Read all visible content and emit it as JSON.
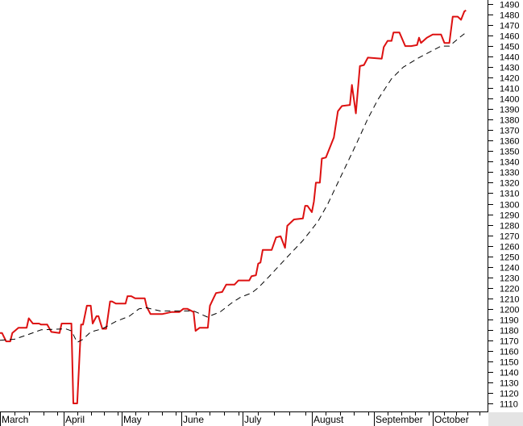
{
  "chart_data": {
    "type": "line",
    "title": "",
    "xlabel": "",
    "ylabel": "",
    "ylim": [
      1110,
      1490
    ],
    "y_ticks": [
      1110,
      1120,
      1130,
      1140,
      1150,
      1160,
      1170,
      1180,
      1190,
      1200,
      1210,
      1220,
      1230,
      1240,
      1250,
      1260,
      1270,
      1280,
      1290,
      1300,
      1310,
      1320,
      1330,
      1340,
      1350,
      1360,
      1370,
      1380,
      1390,
      1400,
      1410,
      1420,
      1430,
      1440,
      1450,
      1460,
      1470,
      1480,
      1490
    ],
    "y_axis_side": "right",
    "x_months": [
      "March",
      "April",
      "May",
      "June",
      "July",
      "August",
      "September",
      "October"
    ],
    "grid": false,
    "legend": "none",
    "series": [
      {
        "style": "solid",
        "color": "#dd1111",
        "points": [
          [
            "03-01",
            1177
          ],
          [
            "03-02",
            1177
          ],
          [
            "03-04",
            1169
          ],
          [
            "03-06",
            1169
          ],
          [
            "03-07",
            1177
          ],
          [
            "03-10",
            1182
          ],
          [
            "03-14",
            1182
          ],
          [
            "03-15",
            1191
          ],
          [
            "03-17",
            1186
          ],
          [
            "03-20",
            1186
          ],
          [
            "03-21",
            1185
          ],
          [
            "03-24",
            1185
          ],
          [
            "03-26",
            1178
          ],
          [
            "03-30",
            1177
          ],
          [
            "03-31",
            1186
          ],
          [
            "04-05",
            1186
          ],
          [
            "04-06",
            1110
          ],
          [
            "04-08",
            1110
          ],
          [
            "04-10",
            1185
          ],
          [
            "04-11",
            1185
          ],
          [
            "04-13",
            1203
          ],
          [
            "04-15",
            1203
          ],
          [
            "04-16",
            1186
          ],
          [
            "04-18",
            1193
          ],
          [
            "04-19",
            1193
          ],
          [
            "04-21",
            1181
          ],
          [
            "04-23",
            1181
          ],
          [
            "04-25",
            1207
          ],
          [
            "04-26",
            1207
          ],
          [
            "04-28",
            1205
          ],
          [
            "05-03",
            1205
          ],
          [
            "05-04",
            1212
          ],
          [
            "05-06",
            1212
          ],
          [
            "05-08",
            1210
          ],
          [
            "05-13",
            1210
          ],
          [
            "05-14",
            1202
          ],
          [
            "05-16",
            1195
          ],
          [
            "05-22",
            1195
          ],
          [
            "05-27",
            1197
          ],
          [
            "05-31",
            1197
          ],
          [
            "06-02",
            1200
          ],
          [
            "06-04",
            1200
          ],
          [
            "06-07",
            1197
          ],
          [
            "06-08",
            1179
          ],
          [
            "06-10",
            1182
          ],
          [
            "06-14",
            1182
          ],
          [
            "06-15",
            1203
          ],
          [
            "06-17",
            1211
          ],
          [
            "06-18",
            1215
          ],
          [
            "06-21",
            1216
          ],
          [
            "06-23",
            1223
          ],
          [
            "06-27",
            1223
          ],
          [
            "06-29",
            1227
          ],
          [
            "07-04",
            1227
          ],
          [
            "07-05",
            1231
          ],
          [
            "07-07",
            1232
          ],
          [
            "07-08",
            1243
          ],
          [
            "07-09",
            1244
          ],
          [
            "07-10",
            1256
          ],
          [
            "07-14",
            1256
          ],
          [
            "07-16",
            1268
          ],
          [
            "07-18",
            1269
          ],
          [
            "07-20",
            1258
          ],
          [
            "07-21",
            1279
          ],
          [
            "07-24",
            1285
          ],
          [
            "07-28",
            1286
          ],
          [
            "07-29",
            1298
          ],
          [
            "07-30",
            1298
          ],
          [
            "08-01",
            1292
          ],
          [
            "08-02",
            1302
          ],
          [
            "08-03",
            1320
          ],
          [
            "08-05",
            1320
          ],
          [
            "08-06",
            1343
          ],
          [
            "08-08",
            1344
          ],
          [
            "08-12",
            1363
          ],
          [
            "08-14",
            1388
          ],
          [
            "08-16",
            1393
          ],
          [
            "08-20",
            1394
          ],
          [
            "08-21",
            1413
          ],
          [
            "08-23",
            1386
          ],
          [
            "08-25",
            1431
          ],
          [
            "08-27",
            1432
          ],
          [
            "08-29",
            1439
          ],
          [
            "09-05",
            1438
          ],
          [
            "09-06",
            1449
          ],
          [
            "09-08",
            1455
          ],
          [
            "09-10",
            1455
          ],
          [
            "09-11",
            1463
          ],
          [
            "09-14",
            1463
          ],
          [
            "09-17",
            1450
          ],
          [
            "09-20",
            1450
          ],
          [
            "09-23",
            1451
          ],
          [
            "09-24",
            1458
          ],
          [
            "09-25",
            1453
          ],
          [
            "09-28",
            1458
          ],
          [
            "10-01",
            1461
          ],
          [
            "10-06",
            1461
          ],
          [
            "10-08",
            1453
          ],
          [
            "10-11",
            1453
          ],
          [
            "10-13",
            1478
          ],
          [
            "10-16",
            1478
          ],
          [
            "10-18",
            1475
          ],
          [
            "10-20",
            1483
          ],
          [
            "10-21",
            1484
          ]
        ]
      },
      {
        "style": "dashed",
        "color": "#000000",
        "points": [
          [
            "03-01",
            1170
          ],
          [
            "03-08",
            1171
          ],
          [
            "03-14",
            1175
          ],
          [
            "03-21",
            1180
          ],
          [
            "04-02",
            1181
          ],
          [
            "04-05",
            1179
          ],
          [
            "04-08",
            1168
          ],
          [
            "04-11",
            1171
          ],
          [
            "04-15",
            1178
          ],
          [
            "04-21",
            1181
          ],
          [
            "04-28",
            1188
          ],
          [
            "05-05",
            1193
          ],
          [
            "05-10",
            1200
          ],
          [
            "05-14",
            1201
          ],
          [
            "05-21",
            1198
          ],
          [
            "06-07",
            1198
          ],
          [
            "06-14",
            1192
          ],
          [
            "06-16",
            1194
          ],
          [
            "06-20",
            1197
          ],
          [
            "06-26",
            1206
          ],
          [
            "06-30",
            1211
          ],
          [
            "07-05",
            1215
          ],
          [
            "07-08",
            1220
          ],
          [
            "07-13",
            1231
          ],
          [
            "07-20",
            1247
          ],
          [
            "07-28",
            1265
          ],
          [
            "08-04",
            1283
          ],
          [
            "08-09",
            1300
          ],
          [
            "08-14",
            1320
          ],
          [
            "08-23",
            1356
          ],
          [
            "08-29",
            1381
          ],
          [
            "09-03",
            1399
          ],
          [
            "09-10",
            1419
          ],
          [
            "09-16",
            1430
          ],
          [
            "09-24",
            1439
          ],
          [
            "10-06",
            1450
          ],
          [
            "10-11",
            1450
          ],
          [
            "10-17",
            1458
          ],
          [
            "10-21",
            1463
          ]
        ]
      }
    ]
  }
}
